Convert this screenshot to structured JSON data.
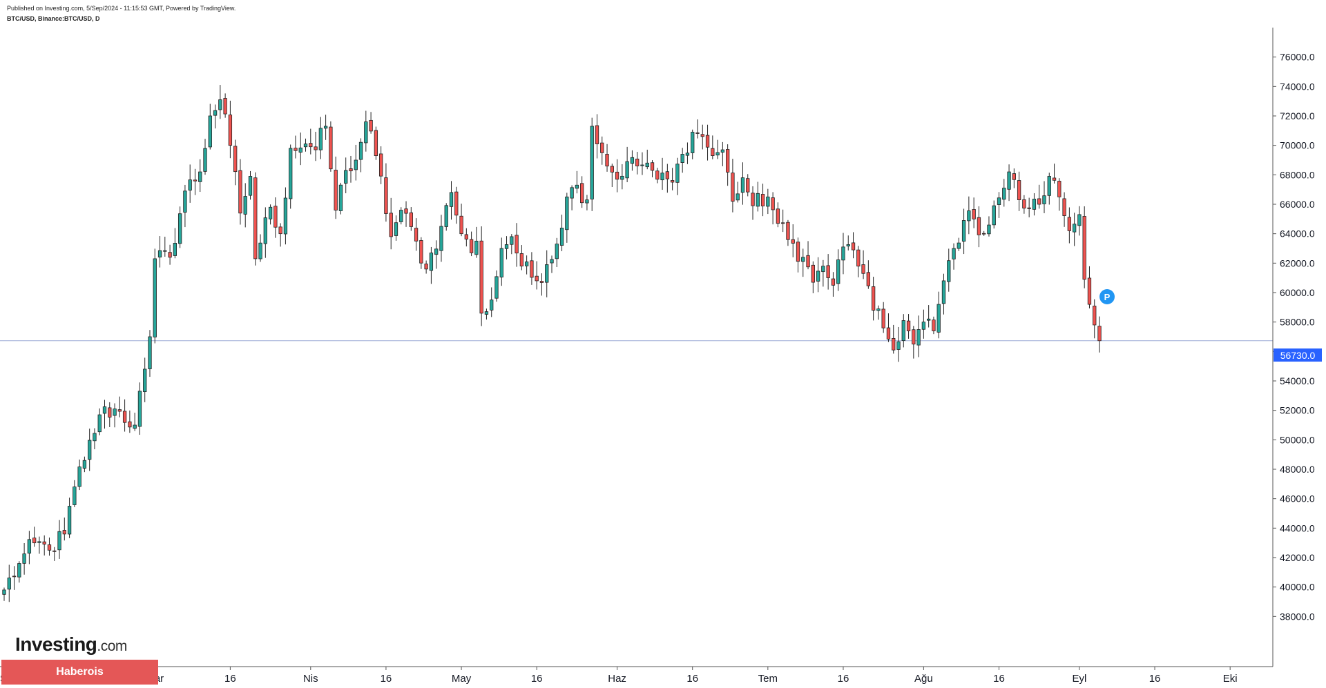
{
  "header": {
    "published": "Published on Investing.com, 5/Sep/2024 - 11:15:53 GMT, Powered by TradingView.",
    "symbol": "BTC/USD, Binance:BTC/USD, D"
  },
  "branding": {
    "logo_text": "Investing",
    "logo_suffix": ".com",
    "watermark": "Haberois"
  },
  "badge": {
    "label": "P",
    "color": "#2196f3"
  },
  "chart_data": {
    "type": "candlestick",
    "interval": "D",
    "ylim": [
      36000,
      78000
    ],
    "y_ticks": [
      38000,
      40000,
      42000,
      44000,
      46000,
      48000,
      50000,
      52000,
      54000,
      56000,
      58000,
      60000,
      62000,
      64000,
      66000,
      68000,
      70000,
      72000,
      74000,
      76000
    ],
    "y_tick_labels": [
      "38000.0",
      "40000.0",
      "42000.0",
      "44000.0",
      "46000.0",
      "48000.0",
      "50000.0",
      "52000.0",
      "54000.0",
      "56000.0",
      "58000.0",
      "60000.0",
      "62000.0",
      "64000.0",
      "66000.0",
      "68000.0",
      "70000.0",
      "72000.0",
      "74000.0",
      "76000.0"
    ],
    "x_ticks": [
      {
        "label": "Şub",
        "date": "2024-02-01"
      },
      {
        "label": "Mar",
        "date": "2024-03-01"
      },
      {
        "label": "16",
        "date": "2024-03-16"
      },
      {
        "label": "Nis",
        "date": "2024-04-01"
      },
      {
        "label": "16",
        "date": "2024-04-16"
      },
      {
        "label": "May",
        "date": "2024-05-01"
      },
      {
        "label": "16",
        "date": "2024-05-16"
      },
      {
        "label": "Haz",
        "date": "2024-06-01"
      },
      {
        "label": "16",
        "date": "2024-06-16"
      },
      {
        "label": "Tem",
        "date": "2024-07-01"
      },
      {
        "label": "16",
        "date": "2024-07-16"
      },
      {
        "label": "Ağu",
        "date": "2024-08-01"
      },
      {
        "label": "16",
        "date": "2024-08-16"
      },
      {
        "label": "Eyl",
        "date": "2024-09-01"
      },
      {
        "label": "16",
        "date": "2024-09-16"
      },
      {
        "label": "Eki",
        "date": "2024-10-01"
      }
    ],
    "x_range": [
      "2024-01-31",
      "2024-10-04"
    ],
    "last_price": 56730,
    "last_price_label": "56730.0",
    "up_color": "#26a69a",
    "down_color": "#ef5350",
    "close_path": [
      {
        "date": "2024-01-31",
        "close": 39800
      },
      {
        "date": "2024-02-03",
        "close": 41600
      },
      {
        "date": "2024-02-06",
        "close": 43000
      },
      {
        "date": "2024-02-09",
        "close": 42500
      },
      {
        "date": "2024-02-12",
        "close": 43600
      },
      {
        "date": "2024-02-14",
        "close": 46800
      },
      {
        "date": "2024-02-16",
        "close": 48600
      },
      {
        "date": "2024-02-19",
        "close": 51700
      },
      {
        "date": "2024-02-22",
        "close": 52100
      },
      {
        "date": "2024-02-26",
        "close": 51000
      },
      {
        "date": "2024-02-28",
        "close": 54800
      },
      {
        "date": "2024-02-29",
        "close": 57000
      },
      {
        "date": "2024-03-01",
        "close": 62300
      },
      {
        "date": "2024-03-04",
        "close": 62400
      },
      {
        "date": "2024-03-07",
        "close": 66900
      },
      {
        "date": "2024-03-10",
        "close": 68200
      },
      {
        "date": "2024-03-12",
        "close": 72000
      },
      {
        "date": "2024-03-14",
        "close": 73100
      },
      {
        "date": "2024-03-16",
        "close": 70000
      },
      {
        "date": "2024-03-18",
        "close": 65400
      },
      {
        "date": "2024-03-20",
        "close": 67900
      },
      {
        "date": "2024-03-21",
        "close": 62300
      },
      {
        "date": "2024-03-24",
        "close": 65800
      },
      {
        "date": "2024-03-26",
        "close": 64000
      },
      {
        "date": "2024-03-28",
        "close": 69800
      },
      {
        "date": "2024-03-31",
        "close": 70100
      },
      {
        "date": "2024-04-02",
        "close": 69700
      },
      {
        "date": "2024-04-04",
        "close": 71300
      },
      {
        "date": "2024-04-06",
        "close": 65600
      },
      {
        "date": "2024-04-08",
        "close": 68300
      },
      {
        "date": "2024-04-10",
        "close": 69000
      },
      {
        "date": "2024-04-12",
        "close": 71600
      },
      {
        "date": "2024-04-14",
        "close": 69300
      },
      {
        "date": "2024-04-17",
        "close": 63800
      },
      {
        "date": "2024-04-19",
        "close": 65600
      },
      {
        "date": "2024-04-22",
        "close": 63500
      },
      {
        "date": "2024-04-24",
        "close": 61600
      },
      {
        "date": "2024-04-27",
        "close": 64500
      },
      {
        "date": "2024-04-29",
        "close": 66800
      },
      {
        "date": "2024-05-01",
        "close": 64000
      },
      {
        "date": "2024-05-03",
        "close": 62700
      },
      {
        "date": "2024-05-04",
        "close": 63500
      },
      {
        "date": "2024-05-05",
        "close": 58600
      },
      {
        "date": "2024-05-07",
        "close": 59500
      },
      {
        "date": "2024-05-09",
        "close": 63000
      },
      {
        "date": "2024-05-11",
        "close": 63800
      },
      {
        "date": "2024-05-13",
        "close": 61800
      },
      {
        "date": "2024-05-16",
        "close": 60800
      },
      {
        "date": "2024-05-18",
        "close": 61900
      },
      {
        "date": "2024-05-20",
        "close": 63300
      },
      {
        "date": "2024-05-22",
        "close": 66500
      },
      {
        "date": "2024-05-24",
        "close": 67300
      },
      {
        "date": "2024-05-26",
        "close": 66300
      },
      {
        "date": "2024-05-27",
        "close": 71300
      },
      {
        "date": "2024-05-29",
        "close": 69500
      },
      {
        "date": "2024-06-01",
        "close": 67700
      },
      {
        "date": "2024-06-03",
        "close": 68900
      },
      {
        "date": "2024-06-05",
        "close": 68600
      },
      {
        "date": "2024-06-07",
        "close": 68800
      },
      {
        "date": "2024-06-09",
        "close": 67700
      },
      {
        "date": "2024-06-12",
        "close": 67500
      },
      {
        "date": "2024-06-14",
        "close": 69400
      },
      {
        "date": "2024-06-16",
        "close": 70900
      },
      {
        "date": "2024-06-18",
        "close": 70600
      },
      {
        "date": "2024-06-20",
        "close": 69300
      },
      {
        "date": "2024-06-22",
        "close": 69700
      },
      {
        "date": "2024-06-24",
        "close": 66200
      },
      {
        "date": "2024-06-26",
        "close": 67800
      },
      {
        "date": "2024-06-28",
        "close": 65900
      },
      {
        "date": "2024-07-01",
        "close": 66500
      },
      {
        "date": "2024-07-03",
        "close": 64700
      },
      {
        "date": "2024-07-05",
        "close": 63600
      },
      {
        "date": "2024-07-08",
        "close": 62400
      },
      {
        "date": "2024-07-10",
        "close": 60700
      },
      {
        "date": "2024-07-12",
        "close": 61800
      },
      {
        "date": "2024-07-14",
        "close": 60500
      },
      {
        "date": "2024-07-16",
        "close": 63100
      },
      {
        "date": "2024-07-18",
        "close": 62900
      },
      {
        "date": "2024-07-20",
        "close": 61300
      },
      {
        "date": "2024-07-22",
        "close": 58800
      },
      {
        "date": "2024-07-24",
        "close": 57600
      },
      {
        "date": "2024-07-26",
        "close": 56100
      },
      {
        "date": "2024-07-28",
        "close": 58100
      },
      {
        "date": "2024-07-30",
        "close": 56500
      },
      {
        "date": "2024-08-01",
        "close": 58000
      },
      {
        "date": "2024-08-03",
        "close": 57400
      },
      {
        "date": "2024-08-05",
        "close": 60800
      },
      {
        "date": "2024-08-07",
        "close": 63000
      },
      {
        "date": "2024-08-09",
        "close": 64900
      },
      {
        "date": "2024-08-11",
        "close": 65000
      },
      {
        "date": "2024-08-13",
        "close": 64000
      },
      {
        "date": "2024-08-15",
        "close": 65900
      },
      {
        "date": "2024-08-17",
        "close": 67100
      },
      {
        "date": "2024-08-18",
        "close": 68200
      },
      {
        "date": "2024-08-20",
        "close": 66300
      },
      {
        "date": "2024-08-22",
        "close": 65700
      },
      {
        "date": "2024-08-24",
        "close": 66000
      },
      {
        "date": "2024-08-26",
        "close": 67900
      },
      {
        "date": "2024-08-28",
        "close": 66500
      },
      {
        "date": "2024-08-30",
        "close": 64200
      },
      {
        "date": "2024-09-01",
        "close": 65300
      },
      {
        "date": "2024-09-02",
        "close": 60900
      },
      {
        "date": "2024-09-03",
        "close": 59200
      },
      {
        "date": "2024-09-04",
        "close": 57800
      },
      {
        "date": "2024-09-05",
        "close": 56730
      }
    ]
  }
}
